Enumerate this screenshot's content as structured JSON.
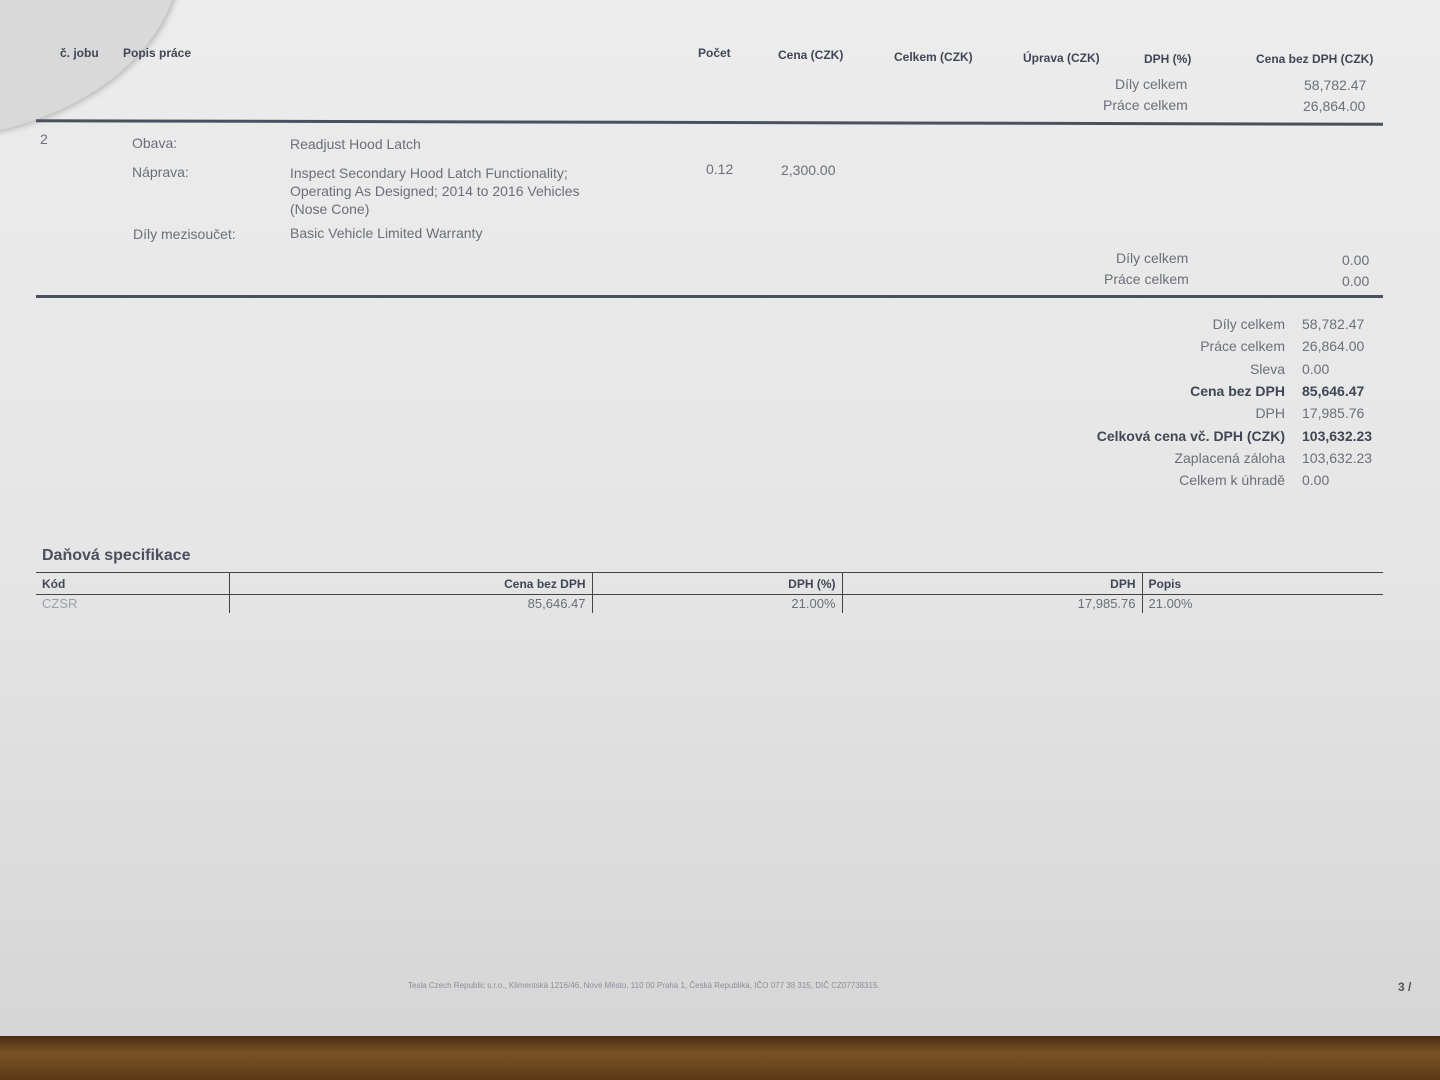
{
  "header": {
    "cols": [
      "č. jobu",
      "Popis práce",
      "Počet",
      "Cena (CZK)",
      "Celkem (CZK)",
      "Úprava (CZK)",
      "DPH (%)",
      "Cena bez DPH (CZK)"
    ],
    "prev_totals": [
      {
        "label": "Díly celkem",
        "value": "58,782.47"
      },
      {
        "label": "Práce celkem",
        "value": "26,864.00"
      }
    ]
  },
  "job": {
    "number": "2",
    "concern_label": "Obava:",
    "concern": "Readjust Hood Latch",
    "correction_label": "Náprava:",
    "correction_lines": [
      "Inspect Secondary Hood Latch Functionality;",
      "Operating As Designed; 2014 to 2016 Vehicles",
      "(Nose Cone)"
    ],
    "qty": "0.12",
    "price": "2,300.00",
    "parts_label": "Díly mezisoučet:",
    "parts": "Basic Vehicle Limited Warranty",
    "totals": [
      {
        "label": "Díly celkem",
        "value": "0.00"
      },
      {
        "label": "Práce celkem",
        "value": "0.00"
      }
    ]
  },
  "summary": [
    {
      "label": "Díly celkem",
      "value": "58,782.47"
    },
    {
      "label": "Práce celkem",
      "value": "26,864.00"
    },
    {
      "label": "Sleva",
      "value": "0.00"
    },
    {
      "label": "Cena bez DPH",
      "value": "85,646.47",
      "bold": true
    },
    {
      "label": "DPH",
      "value": "17,985.76"
    },
    {
      "label": "Celková cena vč. DPH (CZK)",
      "value": "103,632.23",
      "bold": true
    },
    {
      "label": "Zaplacená záloha",
      "value": "103,632.23"
    },
    {
      "label": "Celkem k úhradě",
      "value": "0.00"
    }
  ],
  "tax": {
    "title": "Daňová specifikace",
    "headers": [
      "Kód",
      "Cena bez DPH",
      "DPH (%)",
      "DPH",
      "Popis"
    ],
    "row": [
      "CZSR",
      "85,646.47",
      "21.00%",
      "17,985.76",
      "21.00%"
    ]
  },
  "footer": {
    "company": "Tesla Czech Republic s.r.o., Klimentská 1216/46, Nové Město, 110 00 Praha 1, Česká Republika, IČO 077 38 315, DIČ CZ07738315.",
    "page": "3 /"
  }
}
